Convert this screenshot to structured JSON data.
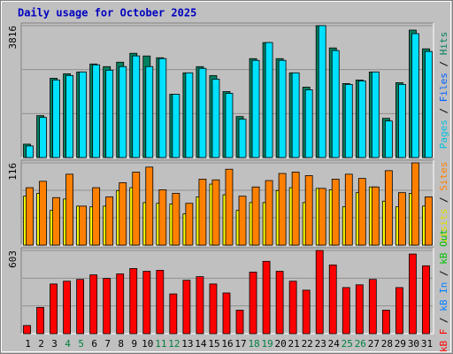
{
  "title": "Daily usage for October 2025",
  "separator": " / ",
  "categories": [
    "1",
    "2",
    "3",
    "4",
    "5",
    "6",
    "7",
    "8",
    "9",
    "10",
    "11",
    "12",
    "13",
    "14",
    "15",
    "16",
    "17",
    "18",
    "19",
    "20",
    "21",
    "22",
    "23",
    "24",
    "25",
    "26",
    "27",
    "28",
    "29",
    "30",
    "31"
  ],
  "category_colors": [
    "#000000",
    "#000000",
    "#000000",
    "#008040",
    "#008040",
    "#000000",
    "#000000",
    "#000000",
    "#000000",
    "#000000",
    "#008040",
    "#008040",
    "#000000",
    "#000000",
    "#000000",
    "#000000",
    "#000000",
    "#008040",
    "#008040",
    "#000000",
    "#000000",
    "#000000",
    "#000000",
    "#000000",
    "#008040",
    "#008040",
    "#000000",
    "#000000",
    "#000000",
    "#000000",
    "#000000"
  ],
  "chart_data": [
    {
      "type": "bar",
      "ylim": [
        0,
        3816
      ],
      "yticks": [
        3816
      ],
      "legend": [
        {
          "name": "Pages",
          "color": "#00c0e0"
        },
        {
          "name": "Files",
          "color": "#0060ff"
        },
        {
          "name": "Hits",
          "color": "#008060"
        }
      ],
      "series": [
        {
          "color": "#008060",
          "values": [
            387,
            1212,
            2295,
            2424,
            2475,
            2707,
            2630,
            2759,
            3017,
            2939,
            2888,
            1831,
            2450,
            2630,
            2372,
            1908,
            1186,
            2862,
            3326,
            2862,
            2450,
            2037,
            3816,
            3171,
            2140,
            2243,
            2475,
            1134,
            2166,
            3687,
            3146
          ]
        },
        {
          "color": "#00e0ff",
          "values": [
            335,
            1161,
            2245,
            2374,
            2477,
            2683,
            2528,
            2632,
            2941,
            2632,
            2864,
            1832,
            2451,
            2580,
            2270,
            1858,
            1109,
            2812,
            3328,
            2812,
            2451,
            1961,
            3816,
            3096,
            2116,
            2219,
            2477,
            1058,
            2116,
            3586,
            3070
          ]
        }
      ]
    },
    {
      "type": "bar",
      "ylim": [
        0,
        116
      ],
      "yticks": [
        116
      ],
      "legend": [
        {
          "name": "Visits",
          "color": "#e0e000"
        },
        {
          "name": "Sites",
          "color": "#ff8000"
        }
      ],
      "series": [
        {
          "color": "#ffff00",
          "values": [
            69,
            73,
            49,
            65,
            55,
            54,
            55,
            77,
            81,
            60,
            59,
            58,
            44,
            68,
            86,
            71,
            49,
            60,
            60,
            77,
            81,
            60,
            80,
            78,
            54,
            74,
            82,
            62,
            54,
            73,
            55
          ]
        },
        {
          "color": "#ff8000",
          "values": [
            81,
            90,
            67,
            100,
            55,
            81,
            68,
            88,
            103,
            110,
            78,
            73,
            59,
            93,
            92,
            107,
            69,
            82,
            91,
            101,
            103,
            98,
            80,
            93,
            100,
            94,
            82,
            105,
            74,
            116,
            68
          ]
        }
      ]
    },
    {
      "type": "bar",
      "ylim": [
        0,
        603
      ],
      "yticks": [
        603
      ],
      "legend": [
        {
          "name": "kB F",
          "color": "#ff0000"
        },
        {
          "name": "kB In",
          "color": "#0080ff"
        },
        {
          "name": "kB Out",
          "color": "#00c000"
        }
      ],
      "series": [
        {
          "color": "#ff0000",
          "values": [
            59,
            190,
            360,
            380,
            393,
            426,
            400,
            433,
            472,
            452,
            459,
            288,
            387,
            413,
            360,
            295,
            170,
            446,
            524,
            452,
            380,
            315,
            603,
            498,
            334,
            354,
            393,
            170,
            334,
            577,
            492
          ]
        }
      ]
    }
  ]
}
